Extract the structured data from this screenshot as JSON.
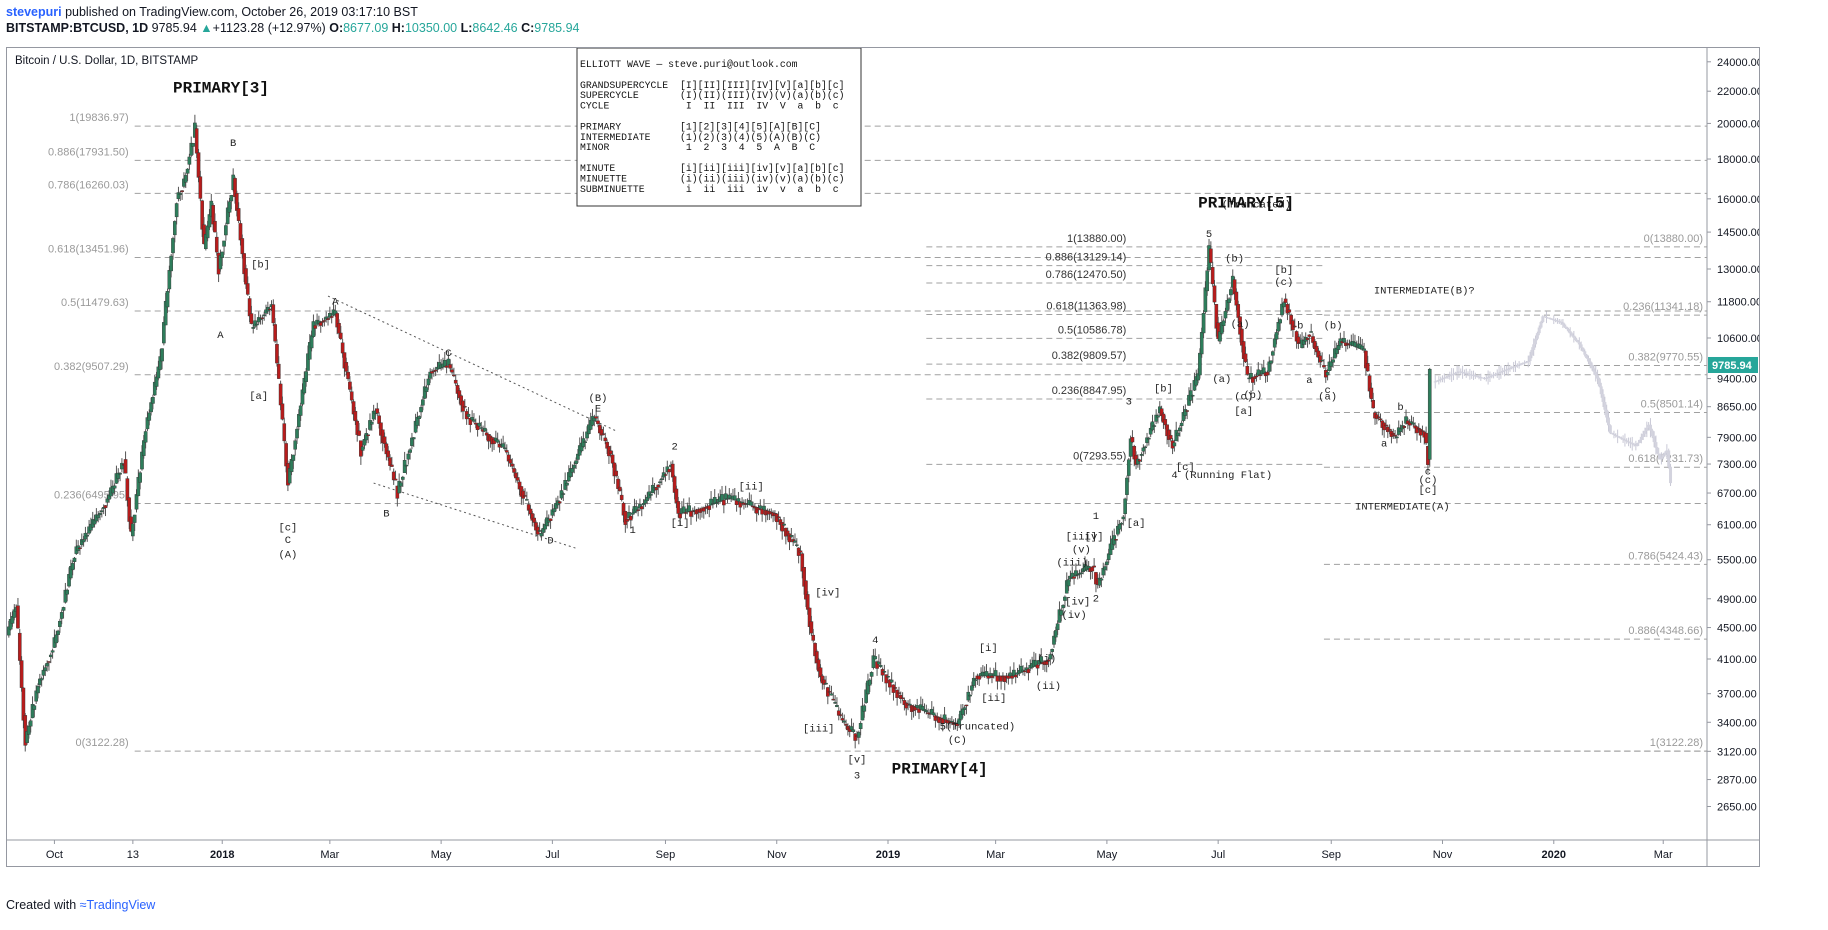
{
  "header": {
    "author": "stevepuri",
    "published": "published on TradingView.com, October 26, 2019 03:17:10 BST",
    "symbol": "BITSTAMP:BTCUSD, 1D",
    "price": "9785.94",
    "change": "+1123.28 (+12.97%)",
    "o_label": "O:",
    "o_value": "8677.09",
    "h_label": "H:",
    "h_value": "10350.00",
    "l_label": "L:",
    "l_value": "8642.46",
    "c_label": "C:",
    "c_value": "9785.94"
  },
  "footer": {
    "created": "Created with",
    "brand": "TradingView"
  },
  "chart_data": {
    "type": "candlestick",
    "title": "Bitcoin / U.S. Dollar, 1D, BITSTAMP",
    "y_scale": "log",
    "ylim": [
      2400,
      25000
    ],
    "y_ticks": [
      2650,
      2870,
      3120,
      3400,
      3700,
      4100,
      4500,
      4900,
      5500,
      6100,
      6700,
      7300,
      7900,
      8650,
      9400,
      10600,
      11800,
      13000,
      14500,
      16000,
      18000,
      20000,
      22000,
      24000
    ],
    "y_tick_labels": [
      "2650.00",
      "2870.00",
      "3120.00",
      "3400.00",
      "3700.00",
      "4100.00",
      "4500.00",
      "4900.00",
      "5500.00",
      "6100.00",
      "6700.00",
      "7300.00",
      "7900.00",
      "8650.00",
      "9400.00",
      "10600.00",
      "11800.00",
      "13000.00",
      "14500.00",
      "16000.00",
      "18000.00",
      "20000.00",
      "22000.00",
      "24000.00"
    ],
    "xlim": [
      "2017-09-05",
      "2020-03-25"
    ],
    "x_ticks": [
      {
        "date": "2017-10-01",
        "label": "Oct",
        "bold": false
      },
      {
        "date": "2017-11-13",
        "label": "13",
        "bold": false
      },
      {
        "date": "2018-01-01",
        "label": "2018",
        "bold": true
      },
      {
        "date": "2018-03-01",
        "label": "Mar",
        "bold": false
      },
      {
        "date": "2018-05-01",
        "label": "May",
        "bold": false
      },
      {
        "date": "2018-07-01",
        "label": "Jul",
        "bold": false
      },
      {
        "date": "2018-09-01",
        "label": "Sep",
        "bold": false
      },
      {
        "date": "2018-11-01",
        "label": "Nov",
        "bold": false
      },
      {
        "date": "2019-01-01",
        "label": "2019",
        "bold": true
      },
      {
        "date": "2019-03-01",
        "label": "Mar",
        "bold": false
      },
      {
        "date": "2019-05-01",
        "label": "May",
        "bold": false
      },
      {
        "date": "2019-07-01",
        "label": "Jul",
        "bold": false
      },
      {
        "date": "2019-09-01",
        "label": "Sep",
        "bold": false
      },
      {
        "date": "2019-11-01",
        "label": "Nov",
        "bold": false
      },
      {
        "date": "2020-01-01",
        "label": "2020",
        "bold": true
      },
      {
        "date": "2020-03-01",
        "label": "Mar",
        "bold": false
      }
    ],
    "price_path": [
      [
        "2017-09-05",
        4400
      ],
      [
        "2017-09-10",
        4800
      ],
      [
        "2017-09-15",
        3200
      ],
      [
        "2017-09-22",
        3800
      ],
      [
        "2017-10-01",
        4300
      ],
      [
        "2017-10-12",
        5600
      ],
      [
        "2017-10-20",
        6000
      ],
      [
        "2017-11-01",
        6700
      ],
      [
        "2017-11-08",
        7400
      ],
      [
        "2017-11-12",
        5900
      ],
      [
        "2017-11-20",
        8100
      ],
      [
        "2017-11-28",
        9900
      ],
      [
        "2017-12-07",
        16000
      ],
      [
        "2017-12-11",
        16800
      ],
      [
        "2017-12-17",
        19700
      ],
      [
        "2017-12-22",
        13800
      ],
      [
        "2017-12-26",
        15700
      ],
      [
        "2017-12-30",
        13000
      ],
      [
        "2018-01-07",
        17000
      ],
      [
        "2018-01-17",
        10900
      ],
      [
        "2018-01-28",
        11700
      ],
      [
        "2018-02-06",
        6900
      ],
      [
        "2018-02-20",
        11000
      ],
      [
        "2018-03-04",
        11400
      ],
      [
        "2018-03-18",
        7600
      ],
      [
        "2018-03-26",
        8600
      ],
      [
        "2018-04-07",
        6700
      ],
      [
        "2018-04-25",
        9600
      ],
      [
        "2018-05-05",
        9800
      ],
      [
        "2018-05-15",
        8400
      ],
      [
        "2018-06-05",
        7600
      ],
      [
        "2018-06-24",
        5900
      ],
      [
        "2018-07-05",
        6600
      ],
      [
        "2018-07-24",
        8400
      ],
      [
        "2018-08-02",
        7500
      ],
      [
        "2018-08-10",
        6200
      ],
      [
        "2018-08-20",
        6500
      ],
      [
        "2018-09-04",
        7300
      ],
      [
        "2018-09-08",
        6300
      ],
      [
        "2018-09-20",
        6400
      ],
      [
        "2018-10-05",
        6600
      ],
      [
        "2018-10-31",
        6300
      ],
      [
        "2018-11-14",
        5600
      ],
      [
        "2018-11-20",
        4400
      ],
      [
        "2018-11-25",
        3900
      ],
      [
        "2018-12-07",
        3400
      ],
      [
        "2018-12-15",
        3250
      ],
      [
        "2018-12-24",
        4100
      ],
      [
        "2019-01-10",
        3600
      ],
      [
        "2019-01-28",
        3450
      ],
      [
        "2019-02-08",
        3380
      ],
      [
        "2019-02-18",
        3900
      ],
      [
        "2019-03-10",
        3900
      ],
      [
        "2019-03-30",
        4100
      ],
      [
        "2019-04-10",
        5200
      ],
      [
        "2019-04-23",
        5400
      ],
      [
        "2019-04-26",
        5100
      ],
      [
        "2019-05-10",
        6300
      ],
      [
        "2019-05-14",
        7900
      ],
      [
        "2019-05-17",
        7300
      ],
      [
        "2019-05-30",
        8600
      ],
      [
        "2019-06-06",
        7700
      ],
      [
        "2019-06-20",
        9500
      ],
      [
        "2019-06-26",
        13800
      ],
      [
        "2019-07-01",
        10500
      ],
      [
        "2019-07-09",
        12600
      ],
      [
        "2019-07-17",
        9400
      ],
      [
        "2019-07-28",
        9600
      ],
      [
        "2019-08-06",
        11900
      ],
      [
        "2019-08-15",
        10300
      ],
      [
        "2019-08-20",
        10800
      ],
      [
        "2019-08-29",
        9500
      ],
      [
        "2019-09-06",
        10500
      ],
      [
        "2019-09-19",
        10200
      ],
      [
        "2019-09-24",
        8500
      ],
      [
        "2019-10-06",
        7900
      ],
      [
        "2019-10-12",
        8300
      ],
      [
        "2019-10-22",
        8000
      ],
      [
        "2019-10-24",
        7400
      ],
      [
        "2019-10-25",
        9785.94
      ]
    ],
    "projection_path": [
      [
        "2019-10-27",
        9300
      ],
      [
        "2019-11-10",
        9600
      ],
      [
        "2019-11-24",
        9400
      ],
      [
        "2019-12-08",
        9700
      ],
      [
        "2019-12-18",
        9900
      ],
      [
        "2019-12-26",
        11300
      ],
      [
        "2020-01-05",
        11100
      ],
      [
        "2020-01-15",
        10400
      ],
      [
        "2020-01-25",
        9400
      ],
      [
        "2020-02-01",
        8000
      ],
      [
        "2020-02-15",
        7700
      ],
      [
        "2020-02-22",
        8200
      ],
      [
        "2020-02-28",
        7400
      ],
      [
        "2020-03-03",
        7600
      ],
      [
        "2020-03-05",
        6900
      ]
    ],
    "current_price_tag": "9785.94",
    "fib_left": {
      "labels": [
        "1(19836.97)",
        "0.886(17931.50)",
        "0.786(16260.03)",
        "0.618(13451.96)",
        "0.5(11479.63)",
        "0.382(9507.29)",
        "0.236(6495.95)",
        "0(3122.28)"
      ],
      "prices": [
        19836.97,
        17931.5,
        16260.03,
        13451.96,
        11479.63,
        9507.29,
        6495.95,
        3122.28
      ]
    },
    "fib_mid": {
      "labels": [
        "1(13880.00)",
        "0.886(13129.14)",
        "0.786(12470.50)",
        "0.618(11363.98)",
        "0.5(10586.78)",
        "0.382(9809.57)",
        "0.236(8847.95)",
        "0(7293.55)"
      ],
      "prices": [
        13880.0,
        13129.14,
        12470.5,
        11363.98,
        10586.78,
        9809.57,
        8847.95,
        7293.55
      ]
    },
    "fib_right_top": {
      "labels": [
        "0(13880.00)",
        "0.236(11341.18)",
        "0.382(9770.55)",
        "0.5(8501.14)",
        "0.618(7231.73)"
      ],
      "prices": [
        13880.0,
        11341.18,
        9770.55,
        8501.14,
        7231.73
      ]
    },
    "fib_right_bottom": {
      "labels": [
        "0.786(5424.43)",
        "0.886(4348.66)",
        "1(3122.28)"
      ],
      "prices": [
        5424.43,
        4348.66,
        3122.28
      ]
    },
    "legend_box": [
      "ELLIOTT WAVE — steve.puri@outlook.com",
      "",
      "GRANDSUPERCYCLE  [I][II][III][IV][V][a][b][c]",
      "SUPERCYCLE       (I)(II)(III)(IV)(V)(a)(b)(c)",
      "CYCLE             I  II  III  IV  V  a  b  c",
      "",
      "PRIMARY          [1][2][3][4][5][A][B][C]",
      "INTERMEDIATE     (1)(2)(3)(4)(5)(A)(B)(C)",
      "MINOR             1  2  3  4  5  A  B  C",
      "",
      "MINUTE           [i][ii][iii][iv][v][a][b][c]",
      "MINUETTE         (i)(ii)(iii)(iv)(v)(a)(b)(c)",
      "SUBMINUETTE       i  ii  iii  iv  v  a  b  c"
    ],
    "big_labels": [
      {
        "text": "PRIMARY[3]",
        "date": "2017-12-05",
        "price": 21900
      },
      {
        "text": "PRIMARY[5]",
        "date": "2019-06-20",
        "price": 15600
      },
      {
        "text": "PRIMARY[4]",
        "date": "2019-01-03",
        "price": 2920
      }
    ],
    "annotations": [
      {
        "text": "(Truncated)",
        "date": "2019-07-22",
        "price": 15600
      },
      {
        "text": "INTERMEDIATE(B)?",
        "date": "2019-10-22",
        "price": 12100
      },
      {
        "text": "INTERMEDIATE(A)",
        "date": "2019-10-10",
        "price": 6380
      },
      {
        "text": "4 (Running Flat)",
        "date": "2019-07-03",
        "price": 7000
      },
      {
        "text": "5(Truncated)",
        "date": "2019-02-19",
        "price": 3330
      },
      {
        "text": "(C)",
        "date": "2019-02-08",
        "price": 3200
      }
    ],
    "wave_labels": [
      [
        "B",
        "2018-01-07",
        18700
      ],
      [
        "A",
        "2017-12-31",
        10600
      ],
      [
        "[b]",
        "2018-01-22",
        13050
      ],
      [
        "[a]",
        "2018-01-21",
        8850
      ],
      [
        "[c]",
        "2018-02-06",
        6000
      ],
      [
        "C",
        "2018-02-06",
        5780
      ],
      [
        "(A)",
        "2018-02-06",
        5540
      ],
      [
        "A",
        "2018-03-04",
        11700
      ],
      [
        "C",
        "2018-05-05",
        10050
      ],
      [
        "B",
        "2018-04-01",
        6250
      ],
      [
        "(B)",
        "2018-07-26",
        8800
      ],
      [
        "E",
        "2018-07-26",
        8530
      ],
      [
        "D",
        "2018-06-30",
        5770
      ],
      [
        "2",
        "2018-09-06",
        7620
      ],
      [
        "1",
        "2018-08-14",
        5950
      ],
      [
        "[ii]",
        "2018-10-18",
        6770
      ],
      [
        "[i]",
        "2018-09-09",
        6080
      ],
      [
        "[iv]",
        "2018-11-29",
        4950
      ],
      [
        "[iii]",
        "2018-11-24",
        3310
      ],
      [
        "4",
        "2018-12-25",
        4300
      ],
      [
        "[v]",
        "2018-12-15",
        3020
      ],
      [
        "3",
        "2018-12-15",
        2880
      ],
      [
        "[i]",
        "2019-02-25",
        4200
      ],
      [
        "[ii]",
        "2019-02-28",
        3620
      ],
      [
        "(i)",
        "2019-03-29",
        4070
      ],
      [
        "(ii)",
        "2019-03-30",
        3750
      ],
      [
        "(iii)",
        "2019-04-12",
        5410
      ],
      [
        "[iii]",
        "2019-04-17",
        5840
      ],
      [
        "[v]",
        "2019-04-24",
        5840
      ],
      [
        "(v)",
        "2019-04-17",
        5620
      ],
      [
        "1",
        "2019-04-25",
        6200
      ],
      [
        "[iv]",
        "2019-04-15",
        4820
      ],
      [
        "(iv)",
        "2019-04-13",
        4630
      ],
      [
        "2",
        "2019-04-25",
        4860
      ],
      [
        "3",
        "2019-05-13",
        8700
      ],
      [
        "[a]",
        "2019-05-17",
        6080
      ],
      [
        "[b]",
        "2019-06-01",
        9050
      ],
      [
        "[c]",
        "2019-06-13",
        7170
      ],
      [
        "5",
        "2019-06-26",
        14300
      ],
      [
        "(b)",
        "2019-07-10",
        13300
      ],
      [
        "(a)",
        "2019-07-13",
        10950
      ],
      [
        "(a)",
        "2019-07-03",
        9300
      ],
      [
        "(c)",
        "2019-07-15",
        8830
      ],
      [
        "(b)",
        "2019-07-20",
        8870
      ],
      [
        "[a]",
        "2019-07-15",
        8460
      ],
      [
        "[b]",
        "2019-08-06",
        12850
      ],
      [
        "(c)",
        "2019-08-06",
        12400
      ],
      [
        "b",
        "2019-08-15",
        10900
      ],
      [
        "a",
        "2019-08-20",
        9280
      ],
      [
        "(b)",
        "2019-09-02",
        10900
      ],
      [
        "c",
        "2019-08-30",
        9010
      ],
      [
        "(a)",
        "2019-08-30",
        8830
      ],
      [
        "b",
        "2019-10-09",
        8560
      ],
      [
        "a",
        "2019-09-30",
        7690
      ],
      [
        "c",
        "2019-10-24",
        7080
      ],
      [
        "(c)",
        "2019-10-24",
        6900
      ],
      [
        "[c]",
        "2019-10-24",
        6700
      ]
    ],
    "trendlines": [
      [
        [
          "2018-02-28",
          12000
        ],
        [
          "2018-08-05",
          8050
        ]
      ],
      [
        [
          "2018-03-25",
          6900
        ],
        [
          "2018-07-15",
          5680
        ]
      ]
    ]
  }
}
